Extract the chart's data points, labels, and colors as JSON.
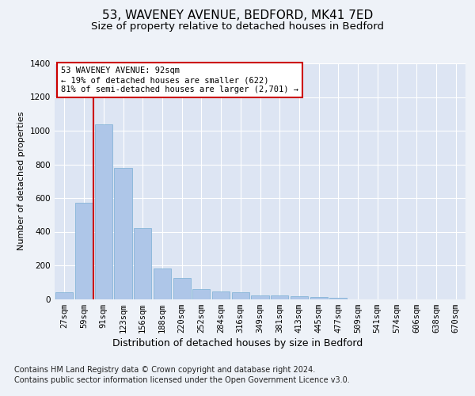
{
  "title1": "53, WAVENEY AVENUE, BEDFORD, MK41 7ED",
  "title2": "Size of property relative to detached houses in Bedford",
  "xlabel": "Distribution of detached houses by size in Bedford",
  "ylabel": "Number of detached properties",
  "categories": [
    "27sqm",
    "59sqm",
    "91sqm",
    "123sqm",
    "156sqm",
    "188sqm",
    "220sqm",
    "252sqm",
    "284sqm",
    "316sqm",
    "349sqm",
    "381sqm",
    "413sqm",
    "445sqm",
    "477sqm",
    "509sqm",
    "541sqm",
    "574sqm",
    "606sqm",
    "638sqm",
    "670sqm"
  ],
  "values": [
    40,
    570,
    1040,
    780,
    420,
    180,
    125,
    60,
    45,
    40,
    20,
    20,
    15,
    10,
    5,
    0,
    0,
    0,
    0,
    0,
    0
  ],
  "bar_color": "#aec6e8",
  "bar_edge_color": "#7aafd4",
  "vline_color": "#cc0000",
  "vline_x_index": 2,
  "annotation_text": "53 WAVENEY AVENUE: 92sqm\n← 19% of detached houses are smaller (622)\n81% of semi-detached houses are larger (2,701) →",
  "annotation_box_color": "#ffffff",
  "annotation_box_edge": "#cc0000",
  "ylim": [
    0,
    1400
  ],
  "yticks": [
    0,
    200,
    400,
    600,
    800,
    1000,
    1200,
    1400
  ],
  "footnote1": "Contains HM Land Registry data © Crown copyright and database right 2024.",
  "footnote2": "Contains public sector information licensed under the Open Government Licence v3.0.",
  "bg_color": "#eef2f8",
  "plot_bg_color": "#dde5f3",
  "title1_fontsize": 11,
  "title2_fontsize": 9.5,
  "xlabel_fontsize": 9,
  "ylabel_fontsize": 8,
  "tick_fontsize": 7.5,
  "footnote_fontsize": 7,
  "ann_fontsize": 7.5
}
